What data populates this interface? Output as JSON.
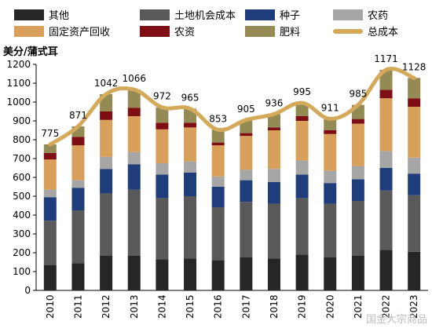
{
  "chart_data": {
    "type": "bar",
    "stacked": true,
    "ylabel": "美分/蒲式耳",
    "ylim": [
      0,
      1200
    ],
    "ytick_step": 100,
    "grid": false,
    "legend_position": "top",
    "categories": [
      "2010",
      "2011",
      "2012",
      "2013",
      "2014",
      "2015",
      "2016",
      "2017",
      "2018",
      "2019",
      "2020",
      "2021",
      "2022",
      "2023"
    ],
    "series": [
      {
        "name": "其他",
        "color": "#262626",
        "values": [
          135,
          145,
          185,
          185,
          165,
          170,
          160,
          175,
          170,
          190,
          175,
          185,
          215,
          205
        ]
      },
      {
        "name": "土地机会成本",
        "color": "#595959",
        "values": [
          235,
          280,
          330,
          350,
          325,
          330,
          280,
          295,
          290,
          300,
          285,
          290,
          315,
          300
        ]
      },
      {
        "name": "种子",
        "color": "#1f3d7a",
        "values": [
          125,
          120,
          130,
          135,
          125,
          125,
          110,
          115,
          115,
          125,
          110,
          115,
          120,
          115
        ]
      },
      {
        "name": "农药",
        "color": "#a6a6a6",
        "values": [
          40,
          40,
          65,
          65,
          60,
          60,
          55,
          55,
          70,
          75,
          65,
          70,
          90,
          85
        ]
      },
      {
        "name": "固定资产回收",
        "color": "#d9a05b",
        "values": [
          160,
          185,
          195,
          190,
          180,
          180,
          165,
          180,
          205,
          210,
          195,
          225,
          280,
          270
        ]
      },
      {
        "name": "农资",
        "color": "#7f0e14",
        "values": [
          35,
          45,
          45,
          45,
          35,
          25,
          15,
          15,
          15,
          25,
          20,
          25,
          45,
          45
        ]
      },
      {
        "name": "肥料",
        "color": "#948a54",
        "values": [
          45,
          56,
          92,
          96,
          82,
          75,
          68,
          70,
          71,
          70,
          61,
          75,
          106,
          108
        ]
      }
    ],
    "line": {
      "name": "总成本",
      "color": "#d4a95a",
      "values": [
        775,
        871,
        1042,
        1066,
        972,
        965,
        853,
        905,
        936,
        995,
        911,
        985,
        1171,
        1128
      ]
    }
  },
  "watermark": "国金大宗商品"
}
